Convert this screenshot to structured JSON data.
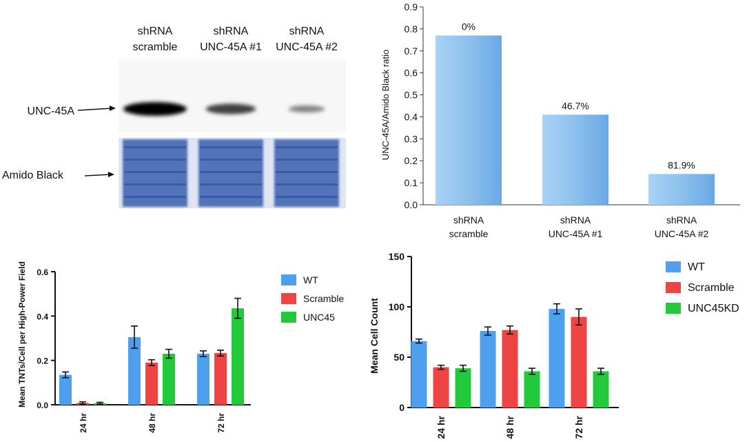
{
  "blot": {
    "lanes": [
      {
        "line1": "shRNA",
        "line2": "scramble",
        "band": 1.0
      },
      {
        "line1": "shRNA",
        "line2": "UNC-45A #1",
        "band": 0.6
      },
      {
        "line1": "shRNA",
        "line2": "UNC-45A #2",
        "band": 0.18
      }
    ],
    "label_unc45a": "UNC-45A",
    "label_amido": "Amido Black"
  },
  "colors": {
    "light_blue": "#8fc3f0",
    "blue": "#4f9fef",
    "red": "#ef4444",
    "green": "#22c93a",
    "stain": "#3b5fae"
  },
  "chart_data": [
    {
      "id": "quant",
      "type": "bar",
      "ylabel": "UNC-45A/Amido Black ratio",
      "ylim": [
        0,
        0.9
      ],
      "yticks": [
        "0.0",
        "0.1",
        "0.2",
        "0.3",
        "0.4",
        "0.5",
        "0.6",
        "0.7",
        "0.8",
        "0.9"
      ],
      "categories": [
        {
          "line1": "shRNA",
          "line2": "scramble"
        },
        {
          "line1": "shRNA",
          "line2": "UNC-45A #1"
        },
        {
          "line1": "shRNA",
          "line2": "UNC-45A #2"
        }
      ],
      "values": [
        0.77,
        0.41,
        0.14
      ],
      "data_labels": [
        "0%",
        "46.7%",
        "81.9%"
      ]
    },
    {
      "id": "tnts",
      "type": "bar",
      "ylabel": "Mean TNTs/Cell per High-Power Field",
      "ylim": [
        0,
        0.6
      ],
      "yticks": [
        "0.0",
        "0.2",
        "0.4",
        "0.6"
      ],
      "categories": [
        "24 hr",
        "48 hr",
        "72 hr"
      ],
      "legend_position": "top-right",
      "series": [
        {
          "name": "WT",
          "values": [
            0.135,
            0.305,
            0.23
          ],
          "errors": [
            0.013,
            0.05,
            0.013
          ]
        },
        {
          "name": "Scramble",
          "values": [
            0.008,
            0.19,
            0.233
          ],
          "errors": [
            0.005,
            0.013,
            0.013
          ]
        },
        {
          "name": "UNC45",
          "values": [
            0.007,
            0.23,
            0.435
          ],
          "errors": [
            0.004,
            0.02,
            0.045
          ]
        }
      ]
    },
    {
      "id": "cells",
      "type": "bar",
      "ylabel": "Mean Cell Count",
      "ylim": [
        0,
        150
      ],
      "yticks": [
        "0",
        "50",
        "100",
        "150"
      ],
      "categories": [
        "24 hr",
        "48 hr",
        "72 hr"
      ],
      "legend_position": "top-right",
      "series": [
        {
          "name": "WT",
          "values": [
            66,
            76,
            98
          ],
          "errors": [
            2,
            4,
            5
          ]
        },
        {
          "name": "Scramble",
          "values": [
            40,
            77,
            90
          ],
          "errors": [
            2,
            4,
            8
          ]
        },
        {
          "name": "UNC45KD",
          "values": [
            39,
            36,
            36
          ],
          "errors": [
            3,
            3,
            3
          ]
        }
      ]
    }
  ]
}
